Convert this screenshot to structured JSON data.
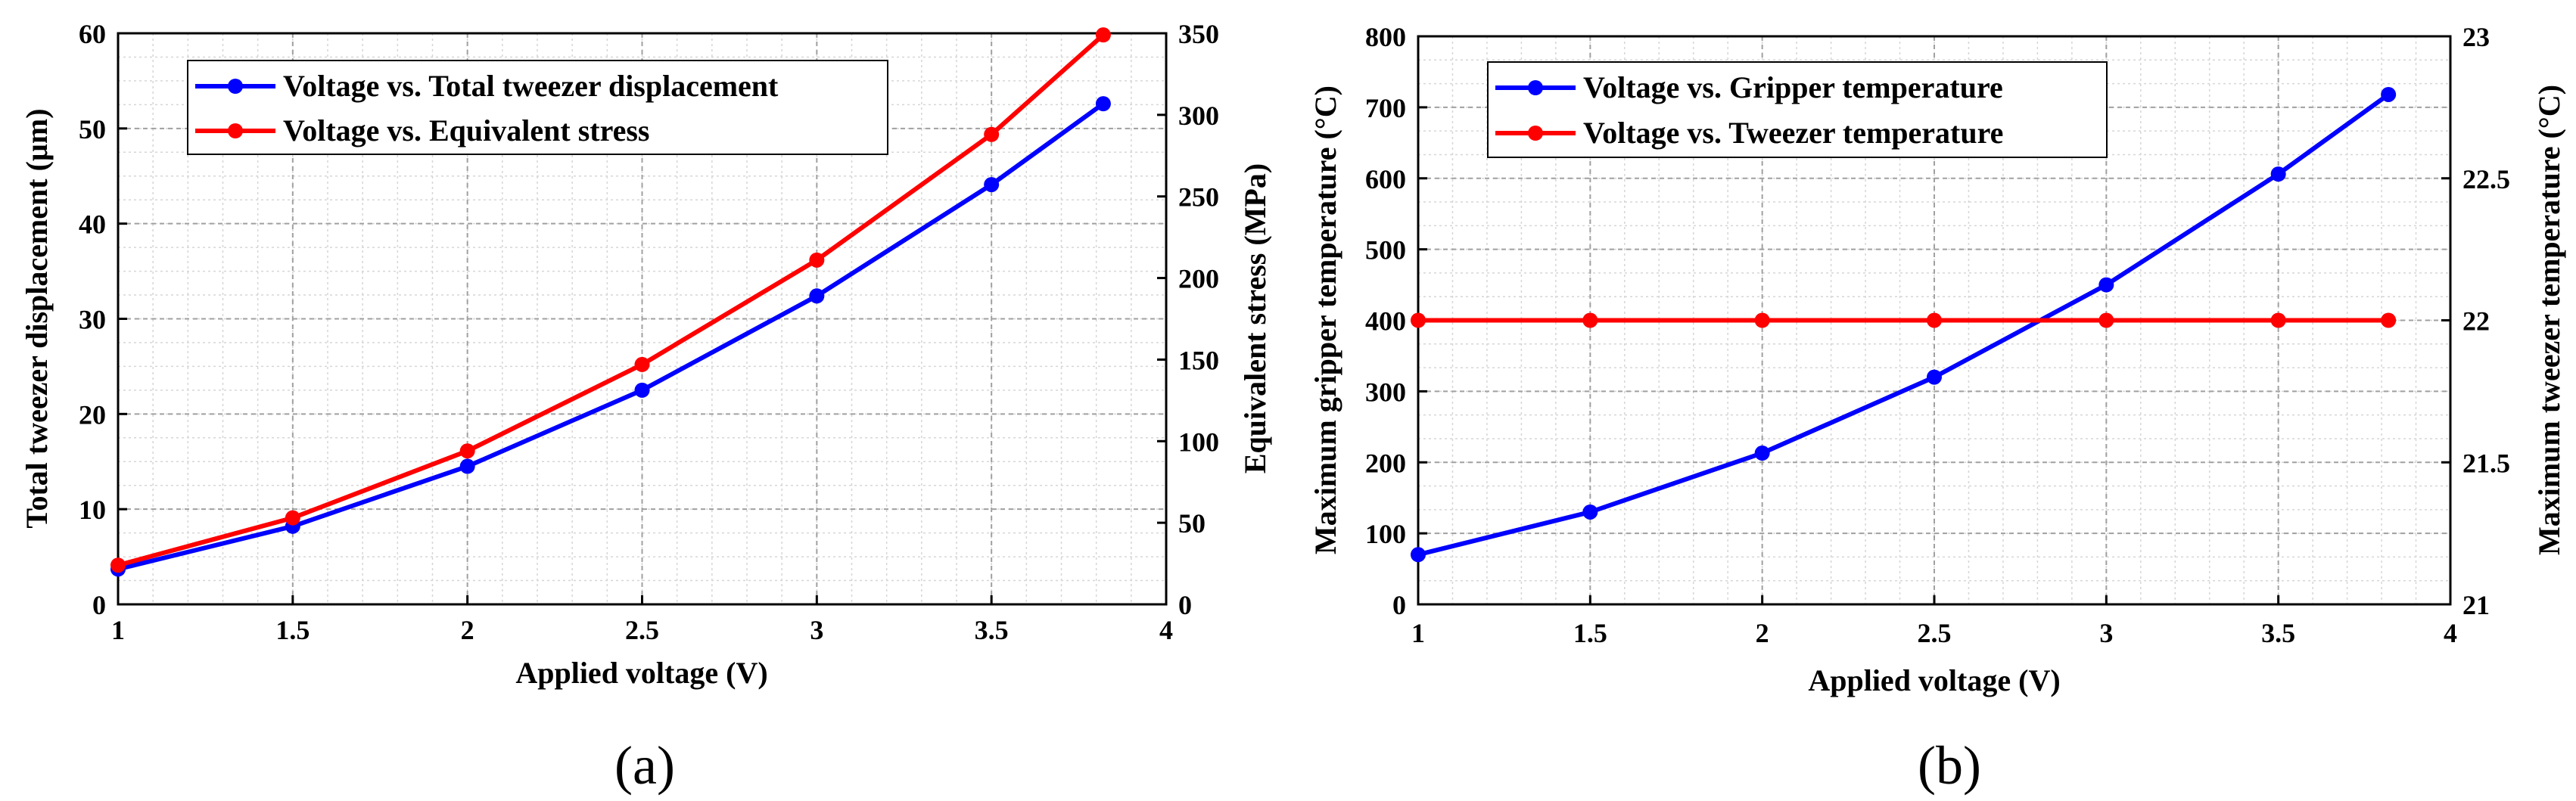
{
  "chart_data": [
    {
      "id": "a",
      "type": "line",
      "panel_label": "(a)",
      "xlabel": "Applied voltage (V)",
      "ylabel_left": "Total tweezer displacement (µm)",
      "ylabel_right": "Equivalent stress (MPa)",
      "xlim": [
        1,
        4
      ],
      "ylim_left": [
        0,
        60
      ],
      "ylim_right": [
        0,
        350
      ],
      "xticks": [
        "1",
        "1.5",
        "2",
        "2.5",
        "3",
        "3.5",
        "4"
      ],
      "yticks_left": [
        "0",
        "10",
        "20",
        "30",
        "40",
        "50",
        "60"
      ],
      "yticks_right": [
        "0",
        "50",
        "100",
        "150",
        "200",
        "250",
        "300",
        "350"
      ],
      "grid": true,
      "legend_position": "top-left",
      "series": [
        {
          "name": "Voltage vs. Total tweezer displacement",
          "axis": "left",
          "color": "#0000ff",
          "x": [
            1,
            1.5,
            2,
            2.5,
            3,
            3.5,
            3.82
          ],
          "values": [
            3.7,
            8.2,
            14.5,
            22.5,
            32.4,
            44.1,
            52.6
          ]
        },
        {
          "name": "Voltage vs. Equivalent stress",
          "axis": "right",
          "color": "#ff0000",
          "x": [
            1,
            1.5,
            2,
            2.5,
            3,
            3.5,
            3.82
          ],
          "values": [
            24,
            53,
            94,
            147,
            211,
            288,
            349
          ]
        }
      ]
    },
    {
      "id": "b",
      "type": "line",
      "panel_label": "(b)",
      "xlabel": "Applied voltage (V)",
      "ylabel_left": "Maximum gripper temperature (°C)",
      "ylabel_right": "Maximum tweezer temperature (°C)",
      "xlim": [
        1,
        4
      ],
      "ylim_left": [
        0,
        800
      ],
      "ylim_right": [
        21,
        23
      ],
      "xticks": [
        "1",
        "1.5",
        "2",
        "2.5",
        "3",
        "3.5",
        "4"
      ],
      "yticks_left": [
        "0",
        "100",
        "200",
        "300",
        "400",
        "500",
        "600",
        "700",
        "800"
      ],
      "yticks_right": [
        "21",
        "21.5",
        "22",
        "22.5",
        "23"
      ],
      "grid": true,
      "legend_position": "top-left",
      "series": [
        {
          "name": "Voltage vs. Gripper temperature",
          "axis": "left",
          "color": "#0000ff",
          "x": [
            1,
            1.5,
            2,
            2.5,
            3,
            3.5,
            3.82
          ],
          "values": [
            70,
            130,
            213,
            320,
            450,
            606,
            718
          ]
        },
        {
          "name": "Voltage vs. Tweezer temperature",
          "axis": "right",
          "color": "#ff0000",
          "x": [
            1,
            1.5,
            2,
            2.5,
            3,
            3.5,
            3.82
          ],
          "values": [
            22,
            22,
            22,
            22,
            22,
            22,
            22
          ]
        }
      ]
    }
  ]
}
